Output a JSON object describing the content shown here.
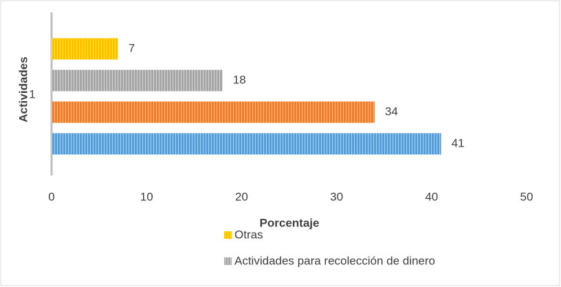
{
  "chart_data": {
    "type": "bar",
    "orientation": "horizontal",
    "categories": [
      "1"
    ],
    "series": [
      {
        "name": "Otras",
        "color": "#ffc000",
        "values": [
          7
        ]
      },
      {
        "name": "Actividades para recolección de dinero",
        "color": "#a5a5a5",
        "values": [
          18
        ]
      },
      {
        "color": "#ed7d31",
        "values": [
          34
        ]
      },
      {
        "color": "#5b9bd5",
        "values": [
          41
        ]
      }
    ],
    "xlabel": "Porcentaje",
    "ylabel": "Actividades",
    "xlim": [
      0,
      50
    ],
    "xticks": [
      0,
      10,
      20,
      30,
      40,
      50
    ],
    "grid": false
  }
}
